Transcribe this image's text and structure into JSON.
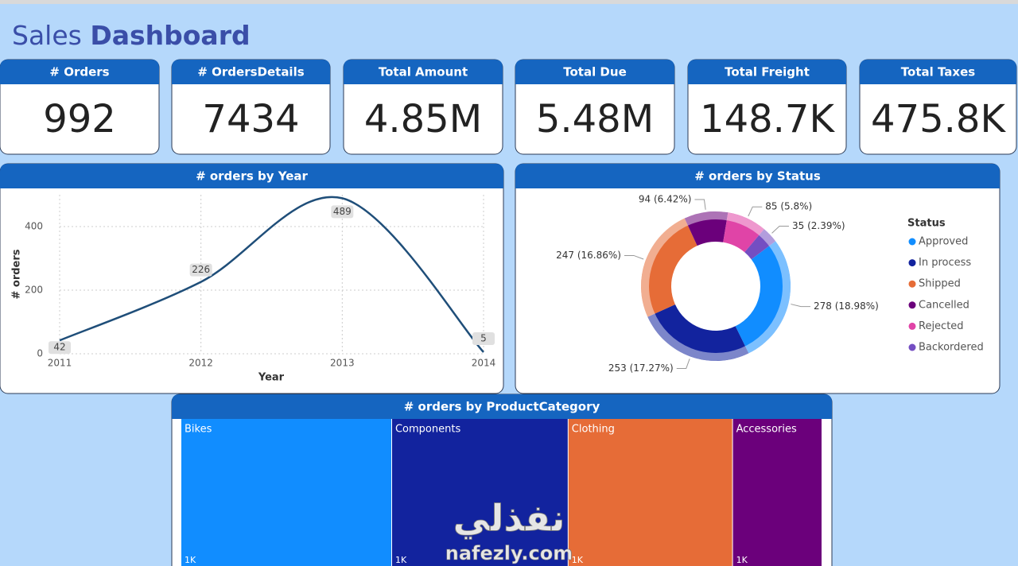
{
  "header": {
    "title_light": "Sales",
    "title_bold": "Dashboard"
  },
  "cards": [
    {
      "label": "# Orders",
      "value": "992"
    },
    {
      "label": "# OrdersDetails",
      "value": "7434"
    },
    {
      "label": "Total Amount",
      "value": "4.85M"
    },
    {
      "label": "Total Due",
      "value": "5.48M"
    },
    {
      "label": "Total Freight",
      "value": "148.7K"
    },
    {
      "label": "Total Taxes",
      "value": "475.8K"
    }
  ],
  "chart_data": [
    {
      "type": "line",
      "title": "# orders by Year",
      "x": [
        2011,
        2012,
        2013,
        2014
      ],
      "values": [
        42,
        226,
        489,
        5
      ],
      "xlabel": "Year",
      "ylabel": "# orders",
      "xlim": [
        2011,
        2014
      ],
      "xticks": [
        2011,
        2012,
        2013,
        2014
      ],
      "ylim": [
        0,
        500
      ],
      "yticks": [
        0,
        200,
        400
      ],
      "color": "#1f4e79",
      "grid": true
    },
    {
      "type": "donut",
      "title": "# orders by Status",
      "legend_title": "Status",
      "categories": [
        "Approved",
        "In process",
        "Shipped",
        "Cancelled",
        "Rejected",
        "Backordered"
      ],
      "values": [
        278,
        253,
        247,
        94,
        85,
        35
      ],
      "value_labels": [
        "278 (18.98%)",
        "253 (17.27%)",
        "247 (16.86%)",
        "94 (6.42%)",
        "85 (5.8%)",
        "35 (2.39%)"
      ],
      "colors": [
        "#118dff",
        "#12239e",
        "#e66c37",
        "#6b007b",
        "#e044a7",
        "#744ec2"
      ]
    },
    {
      "type": "treemap",
      "title": "# orders by ProductCategory",
      "categories": [
        "Bikes",
        "Components",
        "Clothing",
        "Accessories"
      ],
      "values": [
        1320,
        1105,
        1030,
        560
      ],
      "value_labels": [
        "1K",
        "1K",
        "1K",
        "1K"
      ],
      "colors": [
        "#118dff",
        "#12239e",
        "#e66c37",
        "#6b007b"
      ]
    }
  ],
  "watermark": {
    "arabic": "نفذلي",
    "latin": "nafezly.com"
  }
}
